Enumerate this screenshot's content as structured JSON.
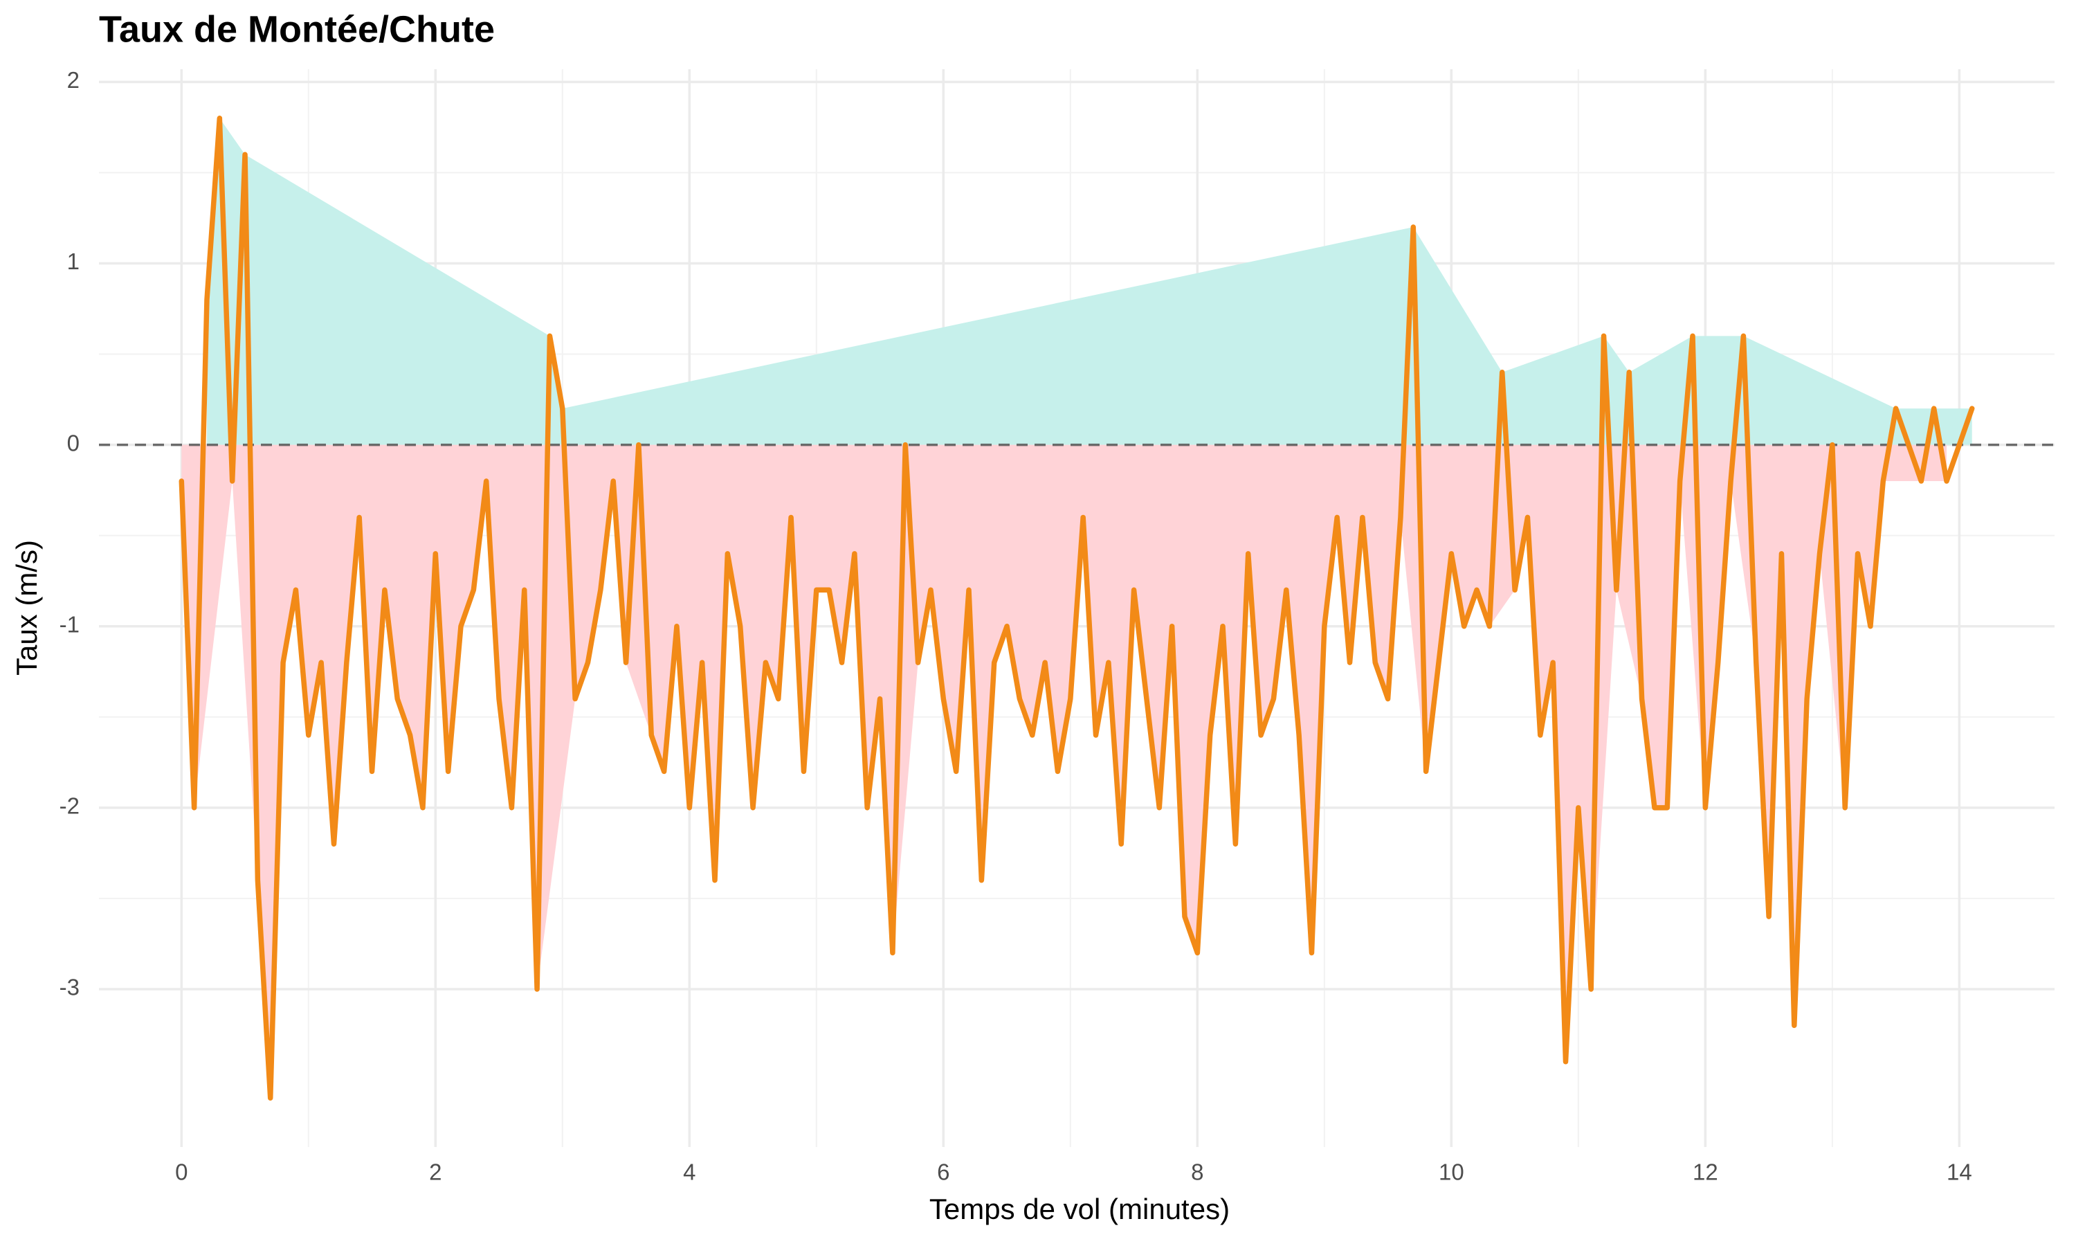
{
  "chart_data": {
    "type": "line",
    "title": "Taux de Montée/Chute",
    "xlabel": "Temps de vol (minutes)",
    "ylabel": "Taux (m/s)",
    "x": [
      0,
      0.1,
      0.2,
      0.3,
      0.4,
      0.5,
      0.6,
      0.7,
      0.8,
      0.9,
      1,
      1.1,
      1.2,
      1.3,
      1.4,
      1.5,
      1.6,
      1.7,
      1.8,
      1.9,
      2,
      2.1,
      2.2,
      2.3,
      2.4,
      2.5,
      2.6,
      2.7,
      2.8,
      2.9,
      3,
      3.1,
      3.2,
      3.3,
      3.4,
      3.5,
      3.6,
      3.7,
      3.8,
      3.9,
      4,
      4.1,
      4.2,
      4.3,
      4.4,
      4.5,
      4.6,
      4.7,
      4.8,
      4.9,
      5,
      5.1,
      5.2,
      5.3,
      5.4,
      5.5,
      5.6,
      5.7,
      5.8,
      5.9,
      6,
      6.1,
      6.2,
      6.3,
      6.4,
      6.5,
      6.6,
      6.7,
      6.8,
      6.9,
      7,
      7.1,
      7.2,
      7.3,
      7.4,
      7.5,
      7.6,
      7.7,
      7.8,
      7.9,
      8,
      8.1,
      8.2,
      8.3,
      8.4,
      8.5,
      8.6,
      8.7,
      8.8,
      8.9,
      9,
      9.1,
      9.2,
      9.3,
      9.4,
      9.5,
      9.6,
      9.7,
      9.8,
      9.9,
      10,
      10.1,
      10.2,
      10.3,
      10.4,
      10.5,
      10.6,
      10.7,
      10.8,
      10.9,
      11,
      11.1,
      11.2,
      11.3,
      11.4,
      11.5,
      11.6,
      11.7,
      11.8,
      11.9,
      12,
      12.1,
      12.2,
      12.3,
      12.4,
      12.5,
      12.6,
      12.7,
      12.8,
      12.9,
      13,
      13.1,
      13.2,
      13.3,
      13.4,
      13.5,
      13.6,
      13.7,
      13.8,
      13.9,
      14,
      14.1
    ],
    "values": [
      -0.2,
      -2.0,
      0.8,
      1.8,
      -0.2,
      1.6,
      -2.4,
      -3.6,
      -1.2,
      -0.8,
      -1.6,
      -1.2,
      -2.2,
      -1.2,
      -0.4,
      -1.8,
      -0.8,
      -1.4,
      -1.6,
      -2.0,
      -0.6,
      -1.8,
      -1.0,
      -0.8,
      -0.2,
      -1.4,
      -2.0,
      -0.8,
      -3.0,
      0.6,
      0.2,
      -1.4,
      -1.2,
      -0.8,
      -0.2,
      -1.2,
      0.0,
      -1.6,
      -1.8,
      -1.0,
      -2.0,
      -1.2,
      -2.4,
      -0.6,
      -1.0,
      -2.0,
      -1.2,
      -1.4,
      -0.4,
      -1.8,
      -0.8,
      -0.8,
      -1.2,
      -0.6,
      -2.0,
      -1.4,
      -2.8,
      0.0,
      -1.2,
      -0.8,
      -1.4,
      -1.8,
      -0.8,
      -2.4,
      -1.2,
      -1.0,
      -1.4,
      -1.6,
      -1.2,
      -1.8,
      -1.4,
      -0.4,
      -1.6,
      -1.2,
      -2.2,
      -0.8,
      -1.4,
      -2.0,
      -1.0,
      -2.6,
      -2.8,
      -1.6,
      -1.0,
      -2.2,
      -0.6,
      -1.6,
      -1.4,
      -0.8,
      -1.6,
      -2.8,
      -1.0,
      -0.4,
      -1.2,
      -0.4,
      -1.2,
      -1.4,
      -0.4,
      1.2,
      -1.8,
      -1.2,
      -0.6,
      -1.0,
      -0.8,
      -1.0,
      0.4,
      -0.8,
      -0.4,
      -1.6,
      -1.2,
      -3.4,
      -2.0,
      -3.0,
      0.6,
      -0.8,
      0.4,
      -1.4,
      -2.0,
      -2.0,
      -0.2,
      0.6,
      -2.0,
      -1.2,
      -0.2,
      0.6,
      -1.2,
      -2.6,
      -0.6,
      -3.2,
      -1.4,
      -0.6,
      0.0,
      -2.0,
      -0.6,
      -1.0,
      -0.2,
      0.2,
      0.0,
      -0.2,
      0.2,
      -0.2,
      0.0,
      0.2
    ],
    "color": "#f28a17",
    "positive_fill": "#c6f0eb",
    "negative_fill": "#ffd3d7",
    "xlim": [
      -0.65,
      14.75
    ],
    "ylim": [
      -3.87,
      2.07
    ],
    "xticks": [
      0,
      2,
      4,
      6,
      8,
      10,
      12,
      14
    ],
    "yticks": [
      -3,
      -2,
      -1,
      0,
      1,
      2
    ],
    "grid": true,
    "reference_line": 0
  }
}
